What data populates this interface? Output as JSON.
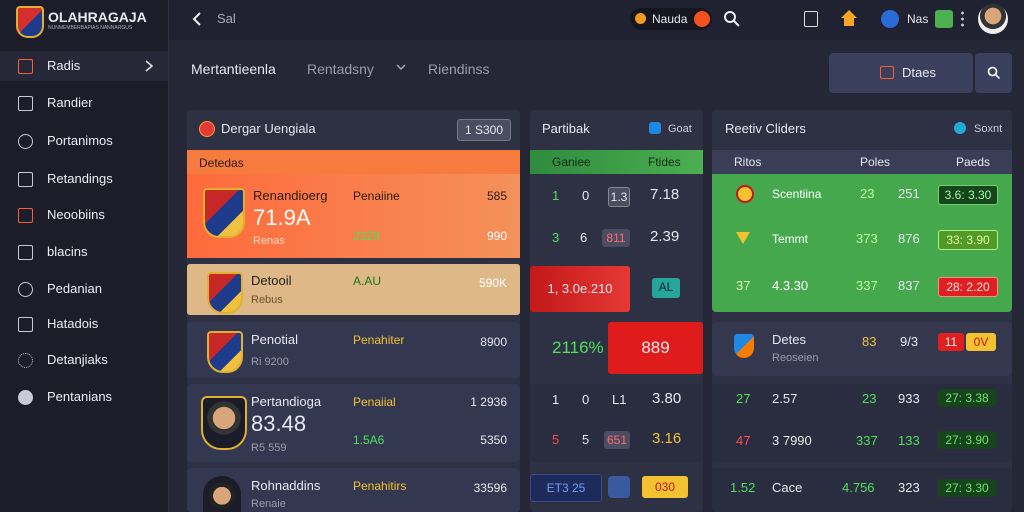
{
  "sidebar": {
    "logo": "OLAHRAGAJA",
    "tagline": "NUNMEMBERBAPIAS NANNARGUS",
    "items": [
      "Radis",
      "Randier",
      "Portanimos",
      "Retandings",
      "Neoobiins",
      "blacins",
      "Pedanian",
      "Hatadois",
      "Detanjiaks",
      "Pentanians"
    ]
  },
  "topbar": {
    "back_label": "Sal",
    "coin": "Nauda",
    "badge": "Nas"
  },
  "subnav": {
    "tabs": [
      "Mertantieenla",
      "Rentadsny",
      "Riendinss"
    ],
    "button": "Dtaes"
  },
  "matches": {
    "title": "Dergar Uengiala",
    "badge": "1 S300",
    "section": "Detedas",
    "cards": [
      {
        "name": "Renandioerg",
        "value": "71.9A",
        "sub": "Renas",
        "tag": "Penaiine",
        "green": "2326",
        "odds": "585",
        "odds2": "990"
      },
      {
        "name": "Detooil",
        "sub": "Rebus",
        "tag": "A.AU",
        "odds": "590K"
      },
      {
        "name": "Penotial",
        "sub": "Ri 9200",
        "tag": "Penahiter",
        "odds": "8900"
      },
      {
        "name": "Pertandioga",
        "value": "83.48",
        "sub": "R5 559",
        "tag": "Penaiial",
        "green": "1.5A6",
        "odds": "1 2936",
        "odds2": "5350"
      },
      {
        "name": "Rohnaddins",
        "sub": "Renaie",
        "tag": "Penahitirs",
        "odds": "33596"
      }
    ]
  },
  "partial": {
    "title": "Partibak",
    "badge": "Goat",
    "columns": [
      "Ganiee",
      "Ftides"
    ],
    "rows": [
      [
        "1",
        "0",
        "1.3",
        "7.18"
      ],
      [
        "3",
        "6",
        "811",
        "2.39"
      ],
      [
        "1, 3.0e.210",
        "AL"
      ],
      [
        "2116%",
        "889"
      ],
      [
        "1",
        "0",
        "L1",
        "3.80"
      ],
      [
        "5",
        "5",
        "651",
        "3.16"
      ],
      [
        "ET3 25",
        "030"
      ]
    ]
  },
  "orders": {
    "title": "Reetiv Cliders",
    "badge": "Soxnt",
    "columns": [
      "Ritos",
      "Poles",
      "Paeds"
    ],
    "rows": [
      [
        "Scentiina",
        "23",
        "251",
        "3.6: 3.30"
      ],
      [
        "Temmt",
        "373",
        "876",
        "33: 3.90"
      ],
      [
        "37",
        "4.3.30",
        "337",
        "837",
        "28: 2.20"
      ],
      [
        "Detes",
        "Reoseien",
        "83",
        "9/3",
        "11",
        "0V"
      ],
      [
        "27",
        "2.57",
        "23",
        "933",
        "27: 3.38"
      ],
      [
        "47",
        "3 7990",
        "337",
        "133",
        "27: 3.90"
      ],
      [
        "1.52",
        "Cace",
        "4.756",
        "323",
        "27: 3.30"
      ]
    ]
  }
}
